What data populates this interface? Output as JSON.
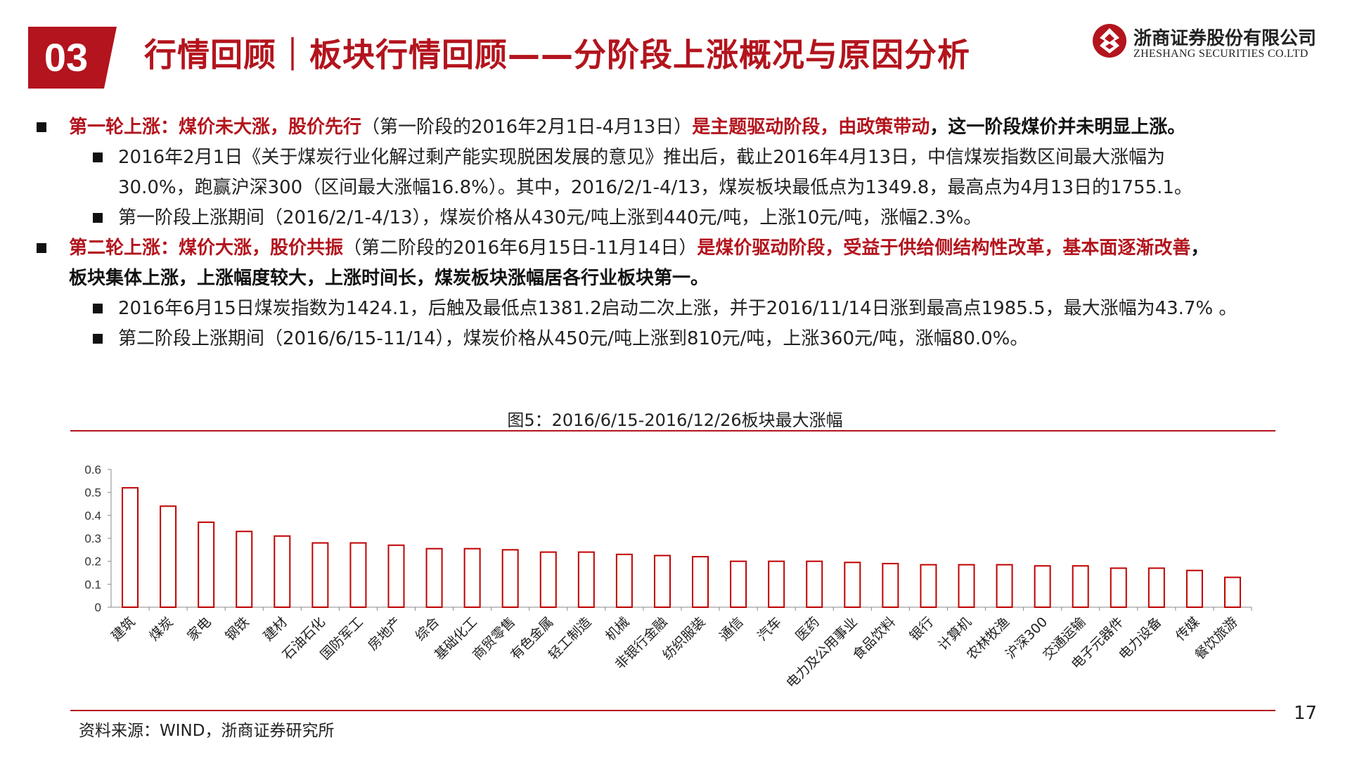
{
  "header": {
    "section_number": "03",
    "title": "行情回顾｜板块行情回顾——分阶段上涨概况与原因分析",
    "logo_cn": "浙商证券股份有限公司",
    "logo_en": "ZHESHANG SECURITIES CO.LTD"
  },
  "body": {
    "p1": {
      "red": "第一轮上涨：煤价未大涨，股价先行",
      "normal": "（第一阶段的2016年2月1日-4月13日）",
      "red2": "是主题驱动阶段，由政策带动",
      "bold": "，这一阶段煤价并未明显上涨。"
    },
    "p1_sub1_line1": "2016年2月1日《关于煤炭行业化解过剩产能实现脱困发展的意见》推出后，截止2016年4月13日，中信煤炭指数区间最大涨幅为",
    "p1_sub1_line2": "30.0%，跑赢沪深300（区间最大涨幅16.8%）。其中，2016/2/1-4/13，煤炭板块最低点为1349.8，最高点为4月13日的1755.1。",
    "p1_sub2": "第一阶段上涨期间（2016/2/1-4/13），煤炭价格从430元/吨上涨到440元/吨，上涨10元/吨，涨幅2.3%。",
    "p2": {
      "red": "第二轮上涨：煤价大涨，股价共振",
      "normal": "（第二阶段的2016年6月15日-11月14日）",
      "red2": "是煤价驱动阶段，受益于供给侧结构性改革，基本面逐渐改善",
      "bold_tail": "，",
      "bold_line2": "板块集体上涨，上涨幅度较大，上涨时间长，煤炭板块涨幅居各行业板块第一。"
    },
    "p2_sub1": "2016年6月15日煤炭指数为1424.1，后触及最低点1381.2启动二次上涨，并于2016/11/14日涨到最高点1985.5，最大涨幅为43.7% 。",
    "p2_sub2": "第二阶段上涨期间（2016/6/15-11/14），煤炭价格从450元/吨上涨到810元/吨，上涨360元/吨，涨幅80.0%。"
  },
  "chart_caption": "图5：2016/6/15-2016/12/26板块最大涨幅",
  "chart_data": {
    "type": "bar",
    "title": "图5：2016/6/15-2016/12/26板块最大涨幅",
    "categories": [
      "建筑",
      "煤炭",
      "家电",
      "钢铁",
      "建材",
      "石油石化",
      "国防军工",
      "房地产",
      "综合",
      "基础化工",
      "商贸零售",
      "有色金属",
      "轻工制造",
      "机械",
      "非银行金融",
      "纺织服装",
      "通信",
      "汽车",
      "医药",
      "电力及公用事业",
      "食品饮料",
      "银行",
      "计算机",
      "农林牧渔",
      "沪深300",
      "交通运输",
      "电子元器件",
      "电力设备",
      "传媒",
      "餐饮旅游"
    ],
    "values": [
      0.52,
      0.44,
      0.37,
      0.33,
      0.31,
      0.28,
      0.28,
      0.27,
      0.255,
      0.255,
      0.25,
      0.24,
      0.24,
      0.23,
      0.225,
      0.22,
      0.2,
      0.2,
      0.2,
      0.195,
      0.19,
      0.185,
      0.185,
      0.185,
      0.18,
      0.18,
      0.17,
      0.17,
      0.16,
      0.13
    ],
    "yticks": [
      "0",
      "0.1",
      "0.2",
      "0.3",
      "0.4",
      "0.5",
      "0.6"
    ],
    "ylim": [
      0,
      0.6
    ],
    "xlabel": "",
    "ylabel": "",
    "grid": false,
    "bar_fill": "#ffffff",
    "bar_stroke": "#c00000"
  },
  "footer": {
    "source": "资料来源：WIND，浙商证券研究所",
    "page_number": "17"
  },
  "colors": {
    "brand_red": "#b3141d"
  },
  "icons": {
    "logo": "zheshang-logo-icon"
  }
}
